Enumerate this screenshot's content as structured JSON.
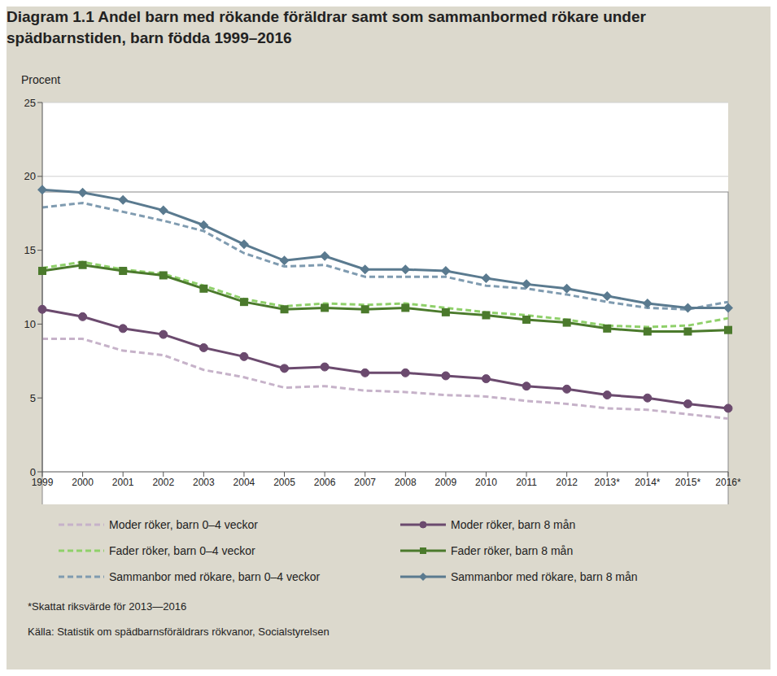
{
  "chart_data": {
    "type": "line",
    "title": "Diagram 1.1 Andel barn med rökande föräldrar samt som sammanbormed rökare under spädbarnstiden, barn födda 1999–2016",
    "y_label": "Procent",
    "annotations": [
      "*Skattat riksvärde för 2013—2016",
      "Källa: Statistik om spädbarnsföräldrars rökvanor, Socialstyrelsen"
    ],
    "categories": [
      "1999",
      "2000",
      "2001",
      "2002",
      "2003",
      "2004",
      "2005",
      "2006",
      "2007",
      "2008",
      "2009",
      "2010",
      "2011",
      "2012",
      "2013*",
      "2014*",
      "2015*",
      "2016*"
    ],
    "series": [
      {
        "name": "Moder röker, barn 0–4 veckor",
        "color": "#c6b2c9",
        "line_style": "dashed",
        "marker": "none",
        "values": [
          9.0,
          9.0,
          8.2,
          7.9,
          6.9,
          6.4,
          5.7,
          5.8,
          5.5,
          5.4,
          5.2,
          5.1,
          4.8,
          4.6,
          4.3,
          4.2,
          3.9,
          3.6
        ]
      },
      {
        "name": "Moder röker, barn 8 mån",
        "color": "#6b4a6e",
        "line_style": "solid",
        "marker": "circle",
        "values": [
          11.0,
          10.5,
          9.7,
          9.3,
          8.4,
          7.8,
          7.0,
          7.1,
          6.7,
          6.7,
          6.5,
          6.3,
          5.8,
          5.6,
          5.2,
          5.0,
          4.6,
          4.3
        ]
      },
      {
        "name": "Fader röker, barn 0–4 veckor",
        "color": "#8fd06a",
        "line_style": "dashed",
        "marker": "none",
        "values": [
          13.8,
          14.2,
          13.7,
          13.4,
          12.6,
          11.7,
          11.2,
          11.4,
          11.3,
          11.4,
          11.1,
          10.8,
          10.6,
          10.3,
          9.9,
          9.8,
          9.9,
          10.4
        ]
      },
      {
        "name": "Fader röker, barn 8 mån",
        "color": "#4b7a2c",
        "line_style": "solid",
        "marker": "square",
        "values": [
          13.6,
          14.0,
          13.6,
          13.3,
          12.4,
          11.5,
          11.0,
          11.1,
          11.0,
          11.1,
          10.8,
          10.6,
          10.3,
          10.1,
          9.7,
          9.5,
          9.5,
          9.6
        ]
      },
      {
        "name": "Sammanbor med rökare, barn 0–4 veckor",
        "color": "#7f9bb0",
        "line_style": "dashed",
        "marker": "none",
        "values": [
          17.9,
          18.2,
          17.6,
          17.0,
          16.3,
          14.8,
          13.9,
          14.0,
          13.2,
          13.2,
          13.2,
          12.6,
          12.4,
          12.0,
          11.5,
          11.1,
          11.0,
          11.5
        ]
      },
      {
        "name": "Sammanbor med rökare, barn 8 mån",
        "color": "#5a7a8f",
        "line_style": "solid",
        "marker": "diamond",
        "values": [
          19.1,
          18.9,
          18.4,
          17.7,
          16.7,
          15.4,
          14.3,
          14.6,
          13.7,
          13.7,
          13.6,
          13.1,
          12.7,
          12.4,
          11.9,
          11.4,
          11.1,
          11.1
        ]
      }
    ],
    "ylim": [
      0,
      25
    ],
    "yticks": [
      0,
      5,
      10,
      15,
      20,
      25
    ],
    "grid": true
  }
}
